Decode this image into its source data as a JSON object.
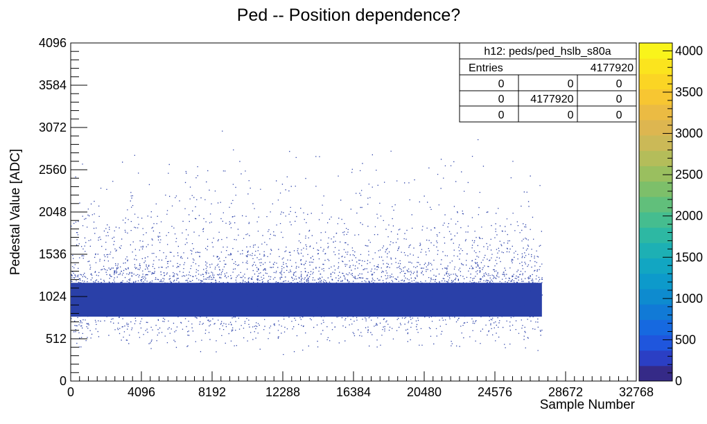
{
  "chart_data": {
    "type": "heatmap",
    "title": "Ped -- Position dependence?",
    "xlabel": "Sample Number",
    "ylabel": "Pedestal Value [ADC]",
    "xlim": [
      0,
      32768
    ],
    "ylim": [
      0,
      4096
    ],
    "x_ticks": [
      "0",
      "4096",
      "8192",
      "12288",
      "16384",
      "20480",
      "24576",
      "28672",
      "32768"
    ],
    "y_ticks": [
      "0",
      "512",
      "1024",
      "1536",
      "2048",
      "2560",
      "3072",
      "3584",
      "4096"
    ],
    "data_extent": {
      "x_range": [
        0,
        27300
      ],
      "dense_core_y": [
        780,
        1190
      ],
      "populated_y": [
        320,
        3150
      ],
      "peak_y": 980
    },
    "stats_box": {
      "title": "h12: peds/ped_hslb_s80a",
      "entries_label": "Entries",
      "entries_value": "4177920",
      "grid": [
        [
          "0",
          "0",
          "0"
        ],
        [
          "0",
          "4177920",
          "0"
        ],
        [
          "0",
          "0",
          "0"
        ]
      ]
    },
    "colorbar": {
      "min": 0,
      "max": 4096,
      "ticks": [
        "0",
        "500",
        "1000",
        "1500",
        "2000",
        "2500",
        "3000",
        "3500",
        "4000"
      ],
      "palette": [
        "#352a87",
        "#2b3fc4",
        "#1f56dd",
        "#1669e0",
        "#117ad6",
        "#0e8bcf",
        "#0d9acb",
        "#12a6c2",
        "#1db0b4",
        "#2db8a3",
        "#45bd8f",
        "#61bf7b",
        "#7dbf6a",
        "#9abf5f",
        "#b4bd5a",
        "#cbb957",
        "#ddb650",
        "#ebbb43",
        "#f7c632",
        "#fbd524",
        "#fbe41e",
        "#f9f41b"
      ]
    },
    "colors": {
      "marker": "#2a40a8"
    },
    "grid": false
  }
}
